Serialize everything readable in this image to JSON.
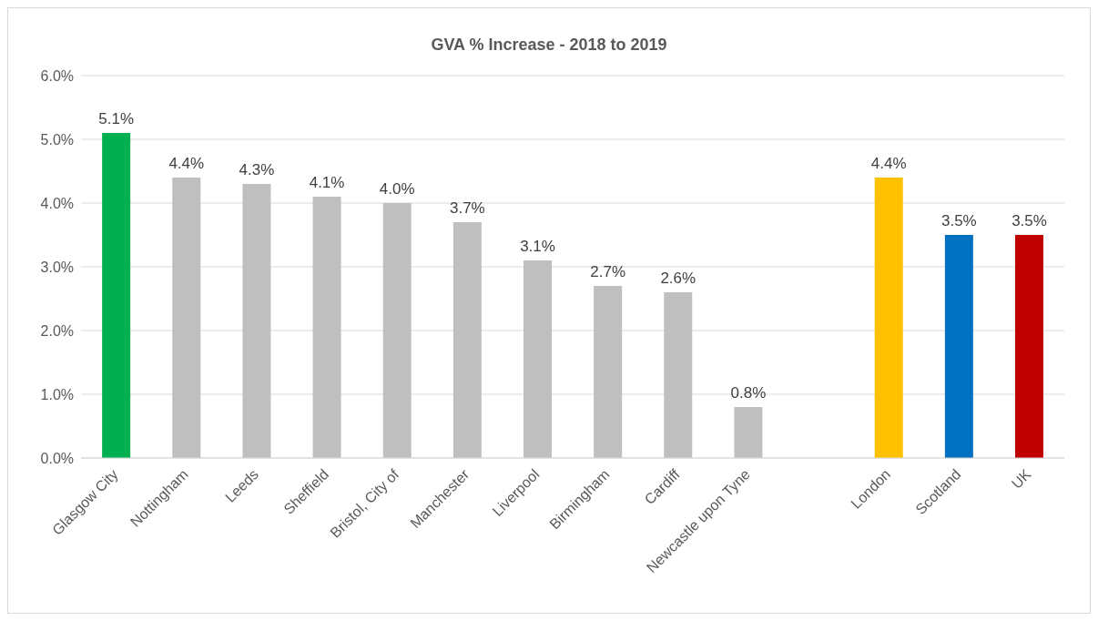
{
  "chart_data": {
    "type": "bar",
    "title": "GVA % Increase - 2018 to 2019",
    "categories": [
      "Glasgow City",
      "Nottingham",
      "Leeds",
      "Sheffield",
      "Bristol, City of",
      "Manchester",
      "Liverpool",
      "Birmingham",
      "Cardiff",
      "Newcastle upon Tyne",
      null,
      "London",
      "Scotland",
      "UK"
    ],
    "values": [
      5.1,
      4.4,
      4.3,
      4.1,
      4.0,
      3.7,
      3.1,
      2.7,
      2.6,
      0.8,
      null,
      4.4,
      3.5,
      3.5
    ],
    "value_labels": [
      "5.1%",
      "4.4%",
      "4.3%",
      "4.1%",
      "4.0%",
      "3.7%",
      "3.1%",
      "2.7%",
      "2.6%",
      "0.8%",
      null,
      "4.4%",
      "3.5%",
      "3.5%"
    ],
    "colors": [
      "#00b050",
      "#bfbfbf",
      "#bfbfbf",
      "#bfbfbf",
      "#bfbfbf",
      "#bfbfbf",
      "#bfbfbf",
      "#bfbfbf",
      "#bfbfbf",
      "#bfbfbf",
      "#bfbfbf",
      "#ffc000",
      "#0070c0",
      "#c00000"
    ],
    "ylim": [
      0,
      6
    ],
    "yticks": [
      {
        "value": 0,
        "label": "0.0%"
      },
      {
        "value": 1,
        "label": "1.0%"
      },
      {
        "value": 2,
        "label": "2.0%"
      },
      {
        "value": 3,
        "label": "3.0%"
      },
      {
        "value": 4,
        "label": "4.0%"
      },
      {
        "value": 5,
        "label": "5.0%"
      },
      {
        "value": 6,
        "label": "6.0%"
      }
    ],
    "grid": "y",
    "legend": false
  }
}
